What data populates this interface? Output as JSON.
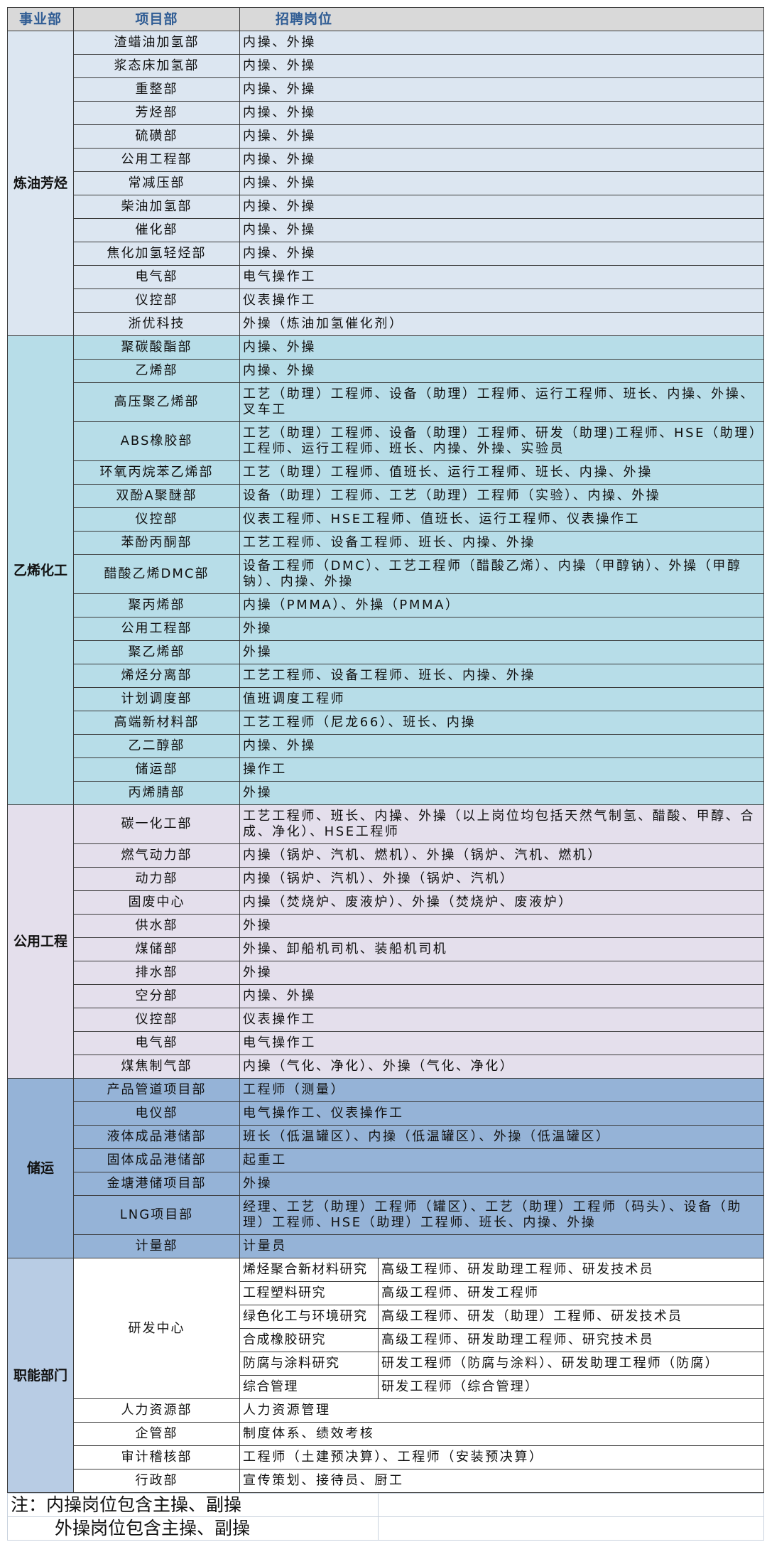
{
  "header": {
    "division": "事业部",
    "department": "项目部",
    "positions": "招聘岗位"
  },
  "colors": {
    "header_bg": "#d9d9d9",
    "header_text": "#2f5c94"
  },
  "sections": [
    {
      "name": "炼油芳烃",
      "bg": "#dce6f1",
      "rows": [
        {
          "dept": "渣蜡油加氢部",
          "jobs": "内操、外操"
        },
        {
          "dept": "浆态床加氢部",
          "jobs": "内操、外操"
        },
        {
          "dept": "重整部",
          "jobs": "内操、外操"
        },
        {
          "dept": "芳烃部",
          "jobs": "内操、外操"
        },
        {
          "dept": "硫磺部",
          "jobs": "内操、外操"
        },
        {
          "dept": "公用工程部",
          "jobs": "内操、外操"
        },
        {
          "dept": "常减压部",
          "jobs": "内操、外操"
        },
        {
          "dept": "柴油加氢部",
          "jobs": "内操、外操"
        },
        {
          "dept": "催化部",
          "jobs": "内操、外操"
        },
        {
          "dept": "焦化加氢轻烃部",
          "jobs": "内操、外操"
        },
        {
          "dept": "电气部",
          "jobs": "电气操作工"
        },
        {
          "dept": "仪控部",
          "jobs": "仪表操作工"
        },
        {
          "dept": "浙优科技",
          "jobs": "外操（炼油加氢催化剂）"
        }
      ]
    },
    {
      "name": "乙烯化工",
      "bg": "#b7dde8",
      "rows": [
        {
          "dept": "聚碳酸酯部",
          "jobs": "内操、外操"
        },
        {
          "dept": "乙烯部",
          "jobs": "内操、外操"
        },
        {
          "dept": "高压聚乙烯部",
          "jobs": "工艺（助理）工程师、设备（助理）工程师、运行工程师、班长、内操、外操、叉车工"
        },
        {
          "dept": "ABS橡胶部",
          "jobs": "工艺（助理）工程师、设备（助理）工程师、研发（助理)工程师、HSE（助理）工程师、运行工程师、班长、内操、外操、实验员"
        },
        {
          "dept": "环氧丙烷苯乙烯部",
          "jobs": "工艺（助理）工程师、值班长、运行工程师、班长、内操、外操"
        },
        {
          "dept": "双酚A聚醚部",
          "jobs": "设备（助理）工程师、工艺（助理）工程师（实验）、内操、外操"
        },
        {
          "dept": "仪控部",
          "jobs": "仪表工程师、HSE工程师、值班长、运行工程师、仪表操作工"
        },
        {
          "dept": "苯酚丙酮部",
          "jobs": "工艺工程师、设备工程师、班长、内操、外操"
        },
        {
          "dept": "醋酸乙烯DMC部",
          "jobs": "设备工程师（DMC）、工艺工程师（醋酸乙烯）、内操（甲醇钠）、外操（甲醇钠）、内操、外操"
        },
        {
          "dept": "聚丙烯部",
          "jobs": "内操（PMMA）、外操（PMMA）"
        },
        {
          "dept": "公用工程部",
          "jobs": "外操"
        },
        {
          "dept": "聚乙烯部",
          "jobs": "外操"
        },
        {
          "dept": "烯烃分离部",
          "jobs": "工艺工程师、设备工程师、班长、内操、外操"
        },
        {
          "dept": "计划调度部",
          "jobs": "值班调度工程师"
        },
        {
          "dept": "高端新材料部",
          "jobs": "工艺工程师（尼龙66）、班长、内操"
        },
        {
          "dept": "乙二醇部",
          "jobs": "内操、外操"
        },
        {
          "dept": "储运部",
          "jobs": "操作工"
        },
        {
          "dept": "丙烯腈部",
          "jobs": "外操"
        }
      ]
    },
    {
      "name": "公用工程",
      "bg": "#e4dfec",
      "rows": [
        {
          "dept": "碳一化工部",
          "jobs": "工艺工程师、班长、内操、外操（以上岗位均包括天然气制氢、醋酸、甲醇、合成、净化）、HSE工程师"
        },
        {
          "dept": "燃气动力部",
          "jobs": "内操（锅炉、汽机、燃机）、外操（锅炉、汽机、燃机）"
        },
        {
          "dept": "动力部",
          "jobs": "内操（锅炉、汽机）、外操（锅炉、汽机）"
        },
        {
          "dept": "固废中心",
          "jobs": "内操（焚烧炉、废液炉）、外操（焚烧炉、废液炉）"
        },
        {
          "dept": "供水部",
          "jobs": "外操"
        },
        {
          "dept": "煤储部",
          "jobs": "外操、卸船机司机、装船机司机"
        },
        {
          "dept": "排水部",
          "jobs": "外操"
        },
        {
          "dept": "空分部",
          "jobs": "内操、外操"
        },
        {
          "dept": "仪控部",
          "jobs": "仪表操作工"
        },
        {
          "dept": "电气部",
          "jobs": "电气操作工"
        },
        {
          "dept": "煤焦制气部",
          "jobs": "内操（气化、净化）、外操（气化、净化）"
        }
      ]
    },
    {
      "name": "储运",
      "bg": "#95b3d7",
      "rows": [
        {
          "dept": "产品管道项目部",
          "jobs": "工程师（测量）"
        },
        {
          "dept": "电仪部",
          "jobs": "电气操作工、仪表操作工"
        },
        {
          "dept": "液体成品港储部",
          "jobs": "班长（低温罐区）、内操（低温罐区）、外操（低温罐区）"
        },
        {
          "dept": "固体成品港储部",
          "jobs": "起重工"
        },
        {
          "dept": "金塘港储项目部",
          "jobs": "外操"
        },
        {
          "dept": "LNG项目部",
          "jobs": "经理、工艺（助理）工程师（罐区）、工艺（助理）工程师（码头）、设备（助理）工程师、HSE（助理）工程师、班长、内操、外操"
        },
        {
          "dept": "计量部",
          "jobs": "计量员"
        }
      ]
    },
    {
      "name": "职能部门",
      "bg": "#b8cce4",
      "rows_bg": "#ffffff",
      "rows": [
        {
          "dept": "研发中心",
          "subs": [
            {
              "name": "烯烃聚合新材料研究",
              "jobs": "高级工程师、研发助理工程师、研发技术员"
            },
            {
              "name": "工程塑料研究",
              "jobs": "高级工程师、研发工程师"
            },
            {
              "name": "绿色化工与环境研究",
              "jobs": "高级工程师、研发（助理）工程师、研发技术员"
            },
            {
              "name": "合成橡胶研究",
              "jobs": "高级工程师、研发助理工程师、研究技术员"
            },
            {
              "name": "防腐与涂料研究",
              "jobs": "研发工程师（防腐与涂料）、研发助理工程师（防腐）"
            },
            {
              "name": "综合管理",
              "jobs": "研发工程师（综合管理）"
            }
          ]
        },
        {
          "dept": "人力资源部",
          "jobs": "人力资源管理"
        },
        {
          "dept": "企管部",
          "jobs": "制度体系、绩效考核"
        },
        {
          "dept": "审计稽核部",
          "jobs": "工程师（土建预决算）、工程师（安装预决算）"
        },
        {
          "dept": "行政部",
          "jobs": "宣传策划、接待员、厨工"
        }
      ]
    }
  ],
  "notes": [
    "注：内操岗位包含主操、副操",
    "外操岗位包含主操、副操"
  ]
}
